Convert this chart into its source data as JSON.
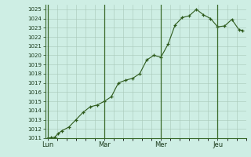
{
  "background_color": "#ceeee4",
  "plot_bg_color": "#ceeee4",
  "line_color": "#2d5a1b",
  "marker_color": "#2d5a1b",
  "grid_color": "#a8c8b8",
  "vline_color": "#3a6a2a",
  "ylim": [
    1011,
    1025.5
  ],
  "ytick_min": 1011,
  "ytick_max": 1025,
  "xtick_labels": [
    "Lun",
    "Mar",
    "Mer",
    "Jeu"
  ],
  "xtick_positions": [
    0,
    48,
    96,
    144
  ],
  "vline_positions": [
    0,
    48,
    96,
    144
  ],
  "x_values": [
    0,
    3,
    6,
    9,
    12,
    18,
    24,
    30,
    36,
    42,
    48,
    54,
    60,
    66,
    72,
    78,
    84,
    90,
    96,
    102,
    108,
    114,
    120,
    126,
    132,
    138,
    144,
    150,
    156,
    162,
    165
  ],
  "y_values": [
    1011.0,
    1011.05,
    1011.1,
    1011.5,
    1011.8,
    1012.2,
    1013.0,
    1013.8,
    1014.4,
    1014.6,
    1015.0,
    1015.5,
    1017.0,
    1017.3,
    1017.5,
    1018.0,
    1019.5,
    1020.0,
    1019.8,
    1021.2,
    1023.3,
    1024.1,
    1024.3,
    1025.0,
    1024.4,
    1024.0,
    1023.1,
    1023.2,
    1023.9,
    1022.8,
    1022.7
  ]
}
